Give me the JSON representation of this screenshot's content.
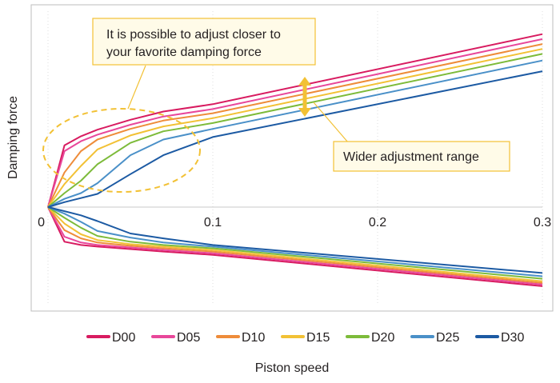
{
  "chart_data": {
    "type": "line",
    "title": "",
    "xlabel": "Piston speed",
    "ylabel": "Damping force",
    "xlim": [
      0,
      0.3
    ],
    "ylim": [
      -1.0,
      2.6
    ],
    "x_ticks": [
      "0",
      "0.1",
      "0.2",
      "0.3"
    ],
    "x_tick_values": [
      0,
      0.1,
      0.2,
      0.3
    ],
    "grid": "vertical-dotted",
    "legend_position": "bottom",
    "x": [
      0,
      0.01,
      0.02,
      0.03,
      0.05,
      0.07,
      0.1,
      0.3
    ],
    "series": [
      {
        "name": "D00",
        "color": "#d81b60",
        "values": [
          0,
          0.75,
          0.86,
          0.94,
          1.06,
          1.16,
          1.25,
          2.1
        ],
        "values_rebound": [
          0,
          -0.42,
          -0.46,
          -0.48,
          -0.51,
          -0.54,
          -0.58,
          -0.96
        ]
      },
      {
        "name": "D05",
        "color": "#e8479a",
        "values": [
          0,
          0.68,
          0.8,
          0.88,
          1.0,
          1.1,
          1.19,
          2.04
        ],
        "values_rebound": [
          0,
          -0.36,
          -0.43,
          -0.46,
          -0.49,
          -0.52,
          -0.56,
          -0.94
        ]
      },
      {
        "name": "D10",
        "color": "#ee8c3a",
        "values": [
          0,
          0.42,
          0.68,
          0.82,
          0.95,
          1.05,
          1.14,
          1.98
        ],
        "values_rebound": [
          0,
          -0.28,
          -0.38,
          -0.43,
          -0.47,
          -0.5,
          -0.54,
          -0.92
        ]
      },
      {
        "name": "D15",
        "color": "#f2c135",
        "values": [
          0,
          0.28,
          0.5,
          0.7,
          0.87,
          0.98,
          1.08,
          1.92
        ],
        "values_rebound": [
          0,
          -0.2,
          -0.33,
          -0.4,
          -0.45,
          -0.48,
          -0.52,
          -0.9
        ]
      },
      {
        "name": "D20",
        "color": "#7dbb3a",
        "values": [
          0,
          0.17,
          0.32,
          0.52,
          0.78,
          0.92,
          1.02,
          1.86
        ],
        "values_rebound": [
          0,
          -0.13,
          -0.25,
          -0.35,
          -0.42,
          -0.46,
          -0.5,
          -0.87
        ]
      },
      {
        "name": "D25",
        "color": "#4a90c8",
        "values": [
          0,
          0.1,
          0.17,
          0.29,
          0.63,
          0.82,
          0.95,
          1.78
        ],
        "values_rebound": [
          0,
          -0.08,
          -0.18,
          -0.29,
          -0.37,
          -0.43,
          -0.48,
          -0.84
        ]
      },
      {
        "name": "D30",
        "color": "#1c5aa3",
        "values": [
          0,
          0.06,
          0.11,
          0.16,
          0.4,
          0.63,
          0.85,
          1.65
        ],
        "values_rebound": [
          0,
          -0.05,
          -0.1,
          -0.17,
          -0.32,
          -0.38,
          -0.46,
          -0.8
        ]
      }
    ],
    "annotations": [
      {
        "text_lines": [
          "It is possible to adjust closer to",
          "your favorite damping force"
        ]
      },
      {
        "text_lines": [
          "Wider adjustment range"
        ]
      }
    ]
  },
  "colors": {
    "axis": "#c8c8c8",
    "grid": "#dddddd",
    "frame": "#bdbdbd",
    "annotation_border": "#f2c135",
    "annotation_fill": "#fffbe8",
    "highlight": "#f2c135",
    "text": "#231f20"
  }
}
